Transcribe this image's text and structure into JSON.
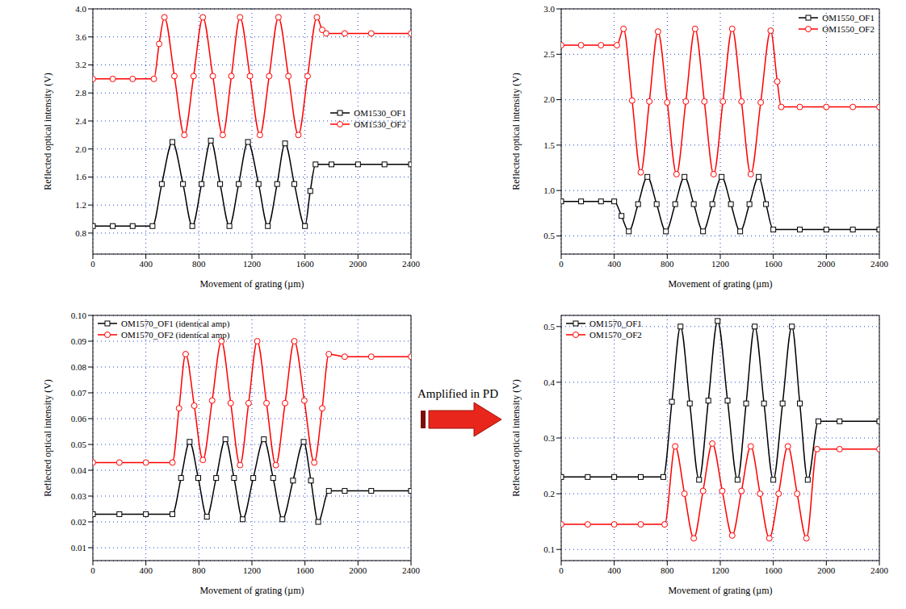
{
  "chart_data": [
    {
      "type": "line",
      "x_label": "Movement of grating (µm)",
      "y_label": "Reflected optical intensity (V)",
      "xlim": [
        0,
        2400
      ],
      "xticks": [
        0,
        400,
        800,
        1200,
        1600,
        2000,
        2400
      ],
      "ylim": [
        0.5,
        4.0
      ],
      "yticks": [
        0.8,
        1.2,
        1.6,
        {
          "value": 2.0,
          "label": "2.0"
        },
        2.4,
        2.8,
        3.2,
        3.6,
        {
          "value": 4.0,
          "label": "4.0"
        }
      ],
      "grid": true,
      "legend": "center right",
      "series": [
        {
          "name": "OM1530_OF1",
          "color": "#000000",
          "marker": "square",
          "line_style": "solid",
          "x": [
            0,
            150,
            300,
            450,
            520,
            600,
            680,
            750,
            820,
            890,
            960,
            1030,
            1100,
            1170,
            1250,
            1320,
            1390,
            1450,
            1520,
            1600,
            1640,
            1680,
            1800,
            2000,
            2200,
            2400
          ],
          "values": [
            0.9,
            0.9,
            0.9,
            0.9,
            1.5,
            2.1,
            1.5,
            0.9,
            1.5,
            2.12,
            1.5,
            0.9,
            1.5,
            2.1,
            1.5,
            0.9,
            1.5,
            2.08,
            1.5,
            0.9,
            1.4,
            1.78,
            1.78,
            1.78,
            1.78,
            1.78
          ]
        },
        {
          "name": "OM1530_OF2",
          "color": "#ff0000",
          "marker": "circle",
          "line_style": "solid",
          "x": [
            0,
            150,
            300,
            460,
            500,
            540,
            615,
            690,
            760,
            830,
            905,
            980,
            1045,
            1110,
            1185,
            1260,
            1330,
            1400,
            1475,
            1550,
            1620,
            1690,
            1730,
            1760,
            1900,
            2100,
            2400
          ],
          "values": [
            3.0,
            3.0,
            3.0,
            3.0,
            3.5,
            3.88,
            3.04,
            2.2,
            3.04,
            3.88,
            3.04,
            2.2,
            3.04,
            3.88,
            3.04,
            2.2,
            3.04,
            3.88,
            3.04,
            2.2,
            3.04,
            3.88,
            3.7,
            3.65,
            3.65,
            3.65,
            3.65
          ]
        }
      ]
    },
    {
      "type": "line",
      "x_label": "Movement of grating (µm)",
      "y_label": "Reflected optical intensity (V)",
      "xlim": [
        0,
        2400
      ],
      "xticks": [
        0,
        400,
        800,
        1200,
        1600,
        2000,
        2400
      ],
      "ylim": [
        0.3,
        3.0
      ],
      "yticks": [
        0.5,
        {
          "value": 1.0,
          "label": "1.0"
        },
        1.5,
        {
          "value": 2.0,
          "label": "2.0"
        },
        2.5,
        {
          "value": 3.0,
          "label": "3.0"
        }
      ],
      "grid": true,
      "legend": "upper right",
      "series": [
        {
          "name": "OM1550_OF1",
          "color": "#000000",
          "marker": "square",
          "line_style": "solid",
          "x": [
            0,
            150,
            300,
            400,
            455,
            510,
            580,
            650,
            720,
            790,
            860,
            930,
            1000,
            1070,
            1140,
            1210,
            1280,
            1350,
            1420,
            1490,
            1545,
            1600,
            1800,
            2000,
            2200,
            2400
          ],
          "values": [
            0.88,
            0.88,
            0.88,
            0.88,
            0.72,
            0.55,
            0.85,
            1.15,
            0.85,
            0.55,
            0.85,
            1.15,
            0.85,
            0.55,
            0.85,
            1.15,
            0.85,
            0.55,
            0.85,
            1.15,
            0.85,
            0.57,
            0.57,
            0.57,
            0.57,
            0.57
          ]
        },
        {
          "name": "OM1550_OF2",
          "color": "#ff0000",
          "marker": "circle",
          "line_style": "solid",
          "x": [
            0,
            150,
            300,
            420,
            470,
            535,
            600,
            665,
            730,
            800,
            870,
            940,
            1010,
            1080,
            1150,
            1220,
            1290,
            1360,
            1430,
            1505,
            1580,
            1630,
            1660,
            1800,
            2000,
            2200,
            2400
          ],
          "values": [
            2.6,
            2.6,
            2.6,
            2.6,
            2.78,
            1.99,
            1.2,
            1.98,
            2.75,
            1.97,
            1.18,
            1.98,
            2.78,
            1.98,
            1.18,
            1.98,
            2.78,
            1.98,
            1.18,
            1.97,
            2.76,
            2.2,
            1.92,
            1.92,
            1.92,
            1.92,
            1.92
          ]
        }
      ]
    },
    {
      "type": "line",
      "x_label": "Movement of grating (µm)",
      "y_label": "Reflected optical intensity (V)",
      "annotation": "Amplified in PD",
      "xlim": [
        0,
        2400
      ],
      "xticks": [
        0,
        400,
        800,
        1200,
        1600,
        2000,
        2400
      ],
      "ylim": [
        0.005,
        0.1
      ],
      "yticks": [
        0.01,
        0.02,
        0.03,
        0.04,
        0.05,
        0.06,
        0.07,
        0.08,
        0.09,
        {
          "value": 0.1,
          "label": "0.10"
        }
      ],
      "grid": true,
      "legend": "upper left",
      "series": [
        {
          "name": "OM1570_OF1 (identical amp)",
          "color": "#000000",
          "marker": "square",
          "line_style": "solid",
          "x": [
            0,
            200,
            400,
            600,
            665,
            730,
            795,
            860,
            930,
            1000,
            1065,
            1130,
            1210,
            1290,
            1360,
            1430,
            1510,
            1590,
            1645,
            1700,
            1780,
            1900,
            2100,
            2400
          ],
          "values": [
            0.023,
            0.023,
            0.023,
            0.023,
            0.037,
            0.051,
            0.037,
            0.022,
            0.037,
            0.052,
            0.037,
            0.021,
            0.037,
            0.052,
            0.037,
            0.021,
            0.036,
            0.051,
            0.036,
            0.02,
            0.032,
            0.032,
            0.032,
            0.032
          ]
        },
        {
          "name": "OM1570_OF2 (identical amp)",
          "color": "#ff0000",
          "marker": "circle",
          "line_style": "solid",
          "x": [
            0,
            200,
            400,
            600,
            650,
            700,
            765,
            830,
            900,
            970,
            1040,
            1110,
            1175,
            1240,
            1310,
            1380,
            1450,
            1520,
            1595,
            1670,
            1730,
            1780,
            1900,
            2100,
            2400
          ],
          "values": [
            0.043,
            0.043,
            0.043,
            0.043,
            0.064,
            0.085,
            0.065,
            0.044,
            0.067,
            0.09,
            0.066,
            0.042,
            0.066,
            0.09,
            0.066,
            0.042,
            0.066,
            0.09,
            0.067,
            0.043,
            0.064,
            0.085,
            0.084,
            0.084,
            0.084
          ]
        }
      ]
    },
    {
      "type": "line",
      "x_label": "Movement of grating (µm)",
      "y_label": "Reflected optical intensity (V)",
      "xlim": [
        0,
        2400
      ],
      "xticks": [
        0,
        400,
        800,
        1200,
        1600,
        2000,
        2400
      ],
      "ylim": [
        0.08,
        0.52
      ],
      "yticks": [
        0.1,
        0.2,
        0.3,
        0.4,
        0.5
      ],
      "grid": true,
      "legend": "upper left",
      "series": [
        {
          "name": "OM1570_OF1",
          "color": "#000000",
          "marker": "square",
          "line_style": "solid",
          "x": [
            0,
            200,
            400,
            600,
            770,
            835,
            900,
            970,
            1040,
            1110,
            1180,
            1255,
            1330,
            1395,
            1460,
            1530,
            1600,
            1670,
            1740,
            1800,
            1860,
            1940,
            2100,
            2400
          ],
          "values": [
            0.23,
            0.23,
            0.23,
            0.23,
            0.23,
            0.365,
            0.5,
            0.362,
            0.225,
            0.367,
            0.51,
            0.367,
            0.225,
            0.362,
            0.5,
            0.362,
            0.225,
            0.362,
            0.5,
            0.362,
            0.225,
            0.33,
            0.33,
            0.33
          ]
        },
        {
          "name": "OM1570_OF2",
          "color": "#ff0000",
          "marker": "circle",
          "line_style": "solid",
          "x": [
            0,
            200,
            400,
            600,
            780,
            860,
            930,
            1000,
            1070,
            1140,
            1215,
            1290,
            1360,
            1430,
            1500,
            1570,
            1640,
            1710,
            1780,
            1850,
            1930,
            2100,
            2400
          ],
          "values": [
            0.145,
            0.145,
            0.145,
            0.145,
            0.145,
            0.285,
            0.2,
            0.12,
            0.205,
            0.29,
            0.205,
            0.125,
            0.205,
            0.285,
            0.2,
            0.12,
            0.2,
            0.285,
            0.2,
            0.12,
            0.28,
            0.28,
            0.28
          ]
        }
      ]
    }
  ]
}
